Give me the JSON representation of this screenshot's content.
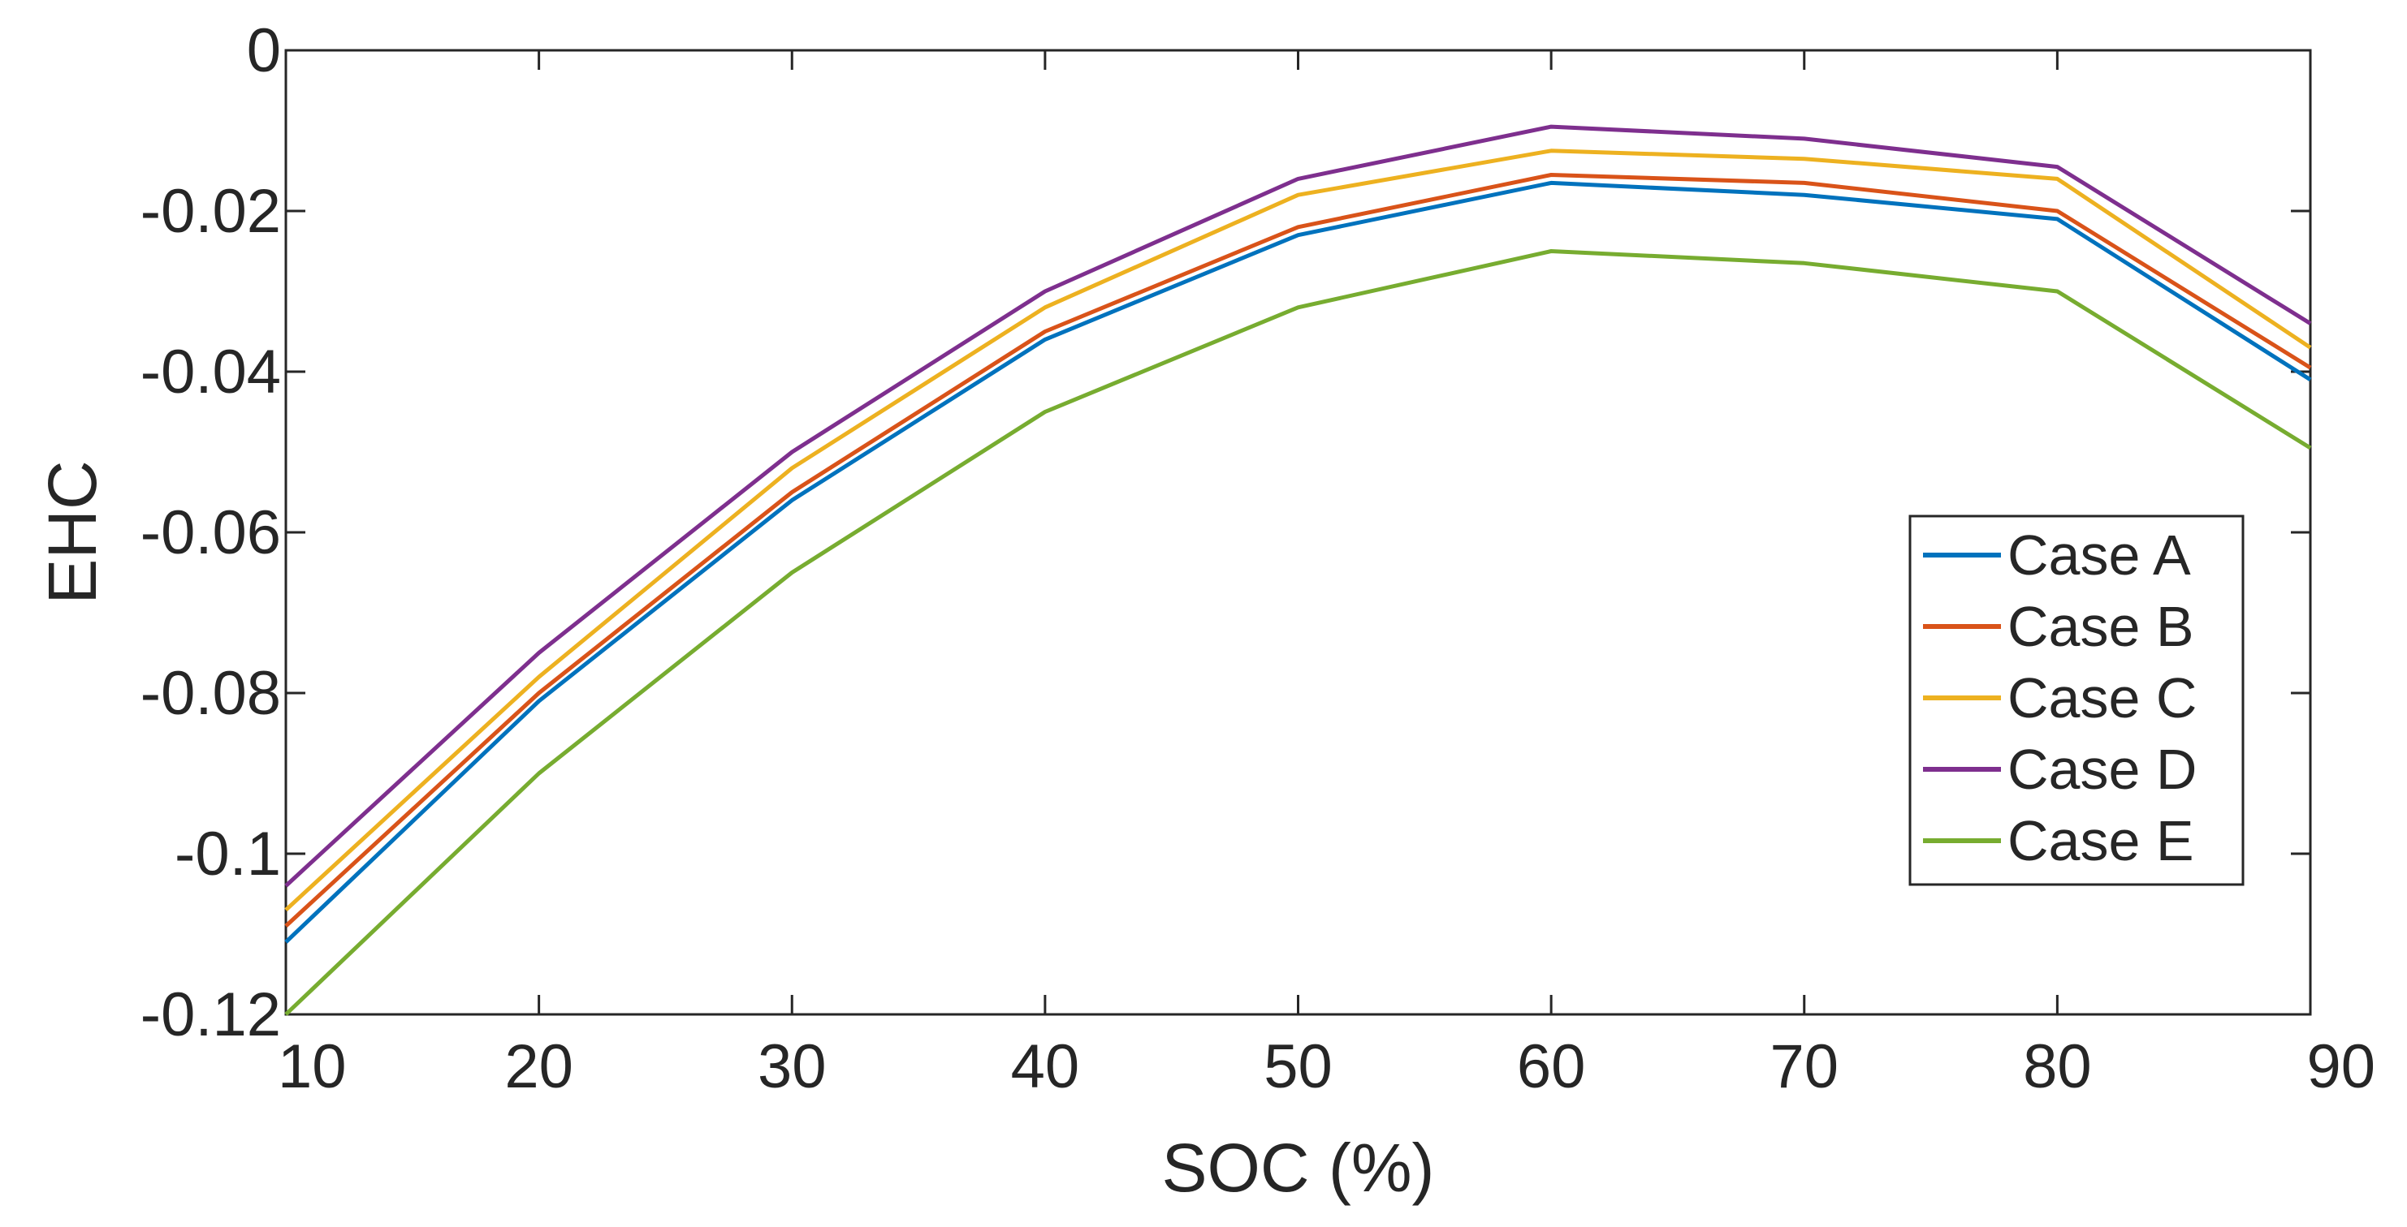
{
  "chart_data": {
    "type": "line",
    "title": "",
    "xlabel": "SOC (%)",
    "ylabel": "EHC",
    "x": [
      10,
      20,
      30,
      40,
      50,
      60,
      70,
      80,
      90
    ],
    "xlim": [
      10,
      90
    ],
    "ylim": [
      -0.12,
      0
    ],
    "xticks": [
      10,
      20,
      30,
      40,
      50,
      60,
      70,
      80,
      90
    ],
    "xtick_labels": [
      "10",
      "20",
      "30",
      "40",
      "50",
      "60",
      "70",
      "80",
      "90"
    ],
    "yticks": [
      0,
      -0.02,
      -0.04,
      -0.06,
      -0.08,
      -0.1,
      -0.12
    ],
    "ytick_labels": [
      "0",
      "-0.02",
      "-0.04",
      "-0.06",
      "-0.08",
      "-0.1",
      "-0.12"
    ],
    "grid": false,
    "legend_position": "center-right",
    "series": [
      {
        "name": "Case A",
        "color": "#0072BD",
        "values": [
          -0.111,
          -0.081,
          -0.056,
          -0.036,
          -0.023,
          -0.0165,
          -0.018,
          -0.021,
          -0.041
        ]
      },
      {
        "name": "Case B",
        "color": "#D95319",
        "values": [
          -0.109,
          -0.08,
          -0.055,
          -0.035,
          -0.022,
          -0.0155,
          -0.0165,
          -0.02,
          -0.0395
        ]
      },
      {
        "name": "Case C",
        "color": "#EDB120",
        "values": [
          -0.107,
          -0.078,
          -0.052,
          -0.032,
          -0.018,
          -0.0125,
          -0.0135,
          -0.016,
          -0.037
        ]
      },
      {
        "name": "Case D",
        "color": "#7E2F8E",
        "values": [
          -0.104,
          -0.075,
          -0.05,
          -0.03,
          -0.016,
          -0.0095,
          -0.011,
          -0.0145,
          -0.034
        ]
      },
      {
        "name": "Case E",
        "color": "#77AC30",
        "values": [
          -0.12,
          -0.09,
          -0.065,
          -0.045,
          -0.032,
          -0.025,
          -0.0265,
          -0.03,
          -0.0495
        ]
      }
    ]
  }
}
